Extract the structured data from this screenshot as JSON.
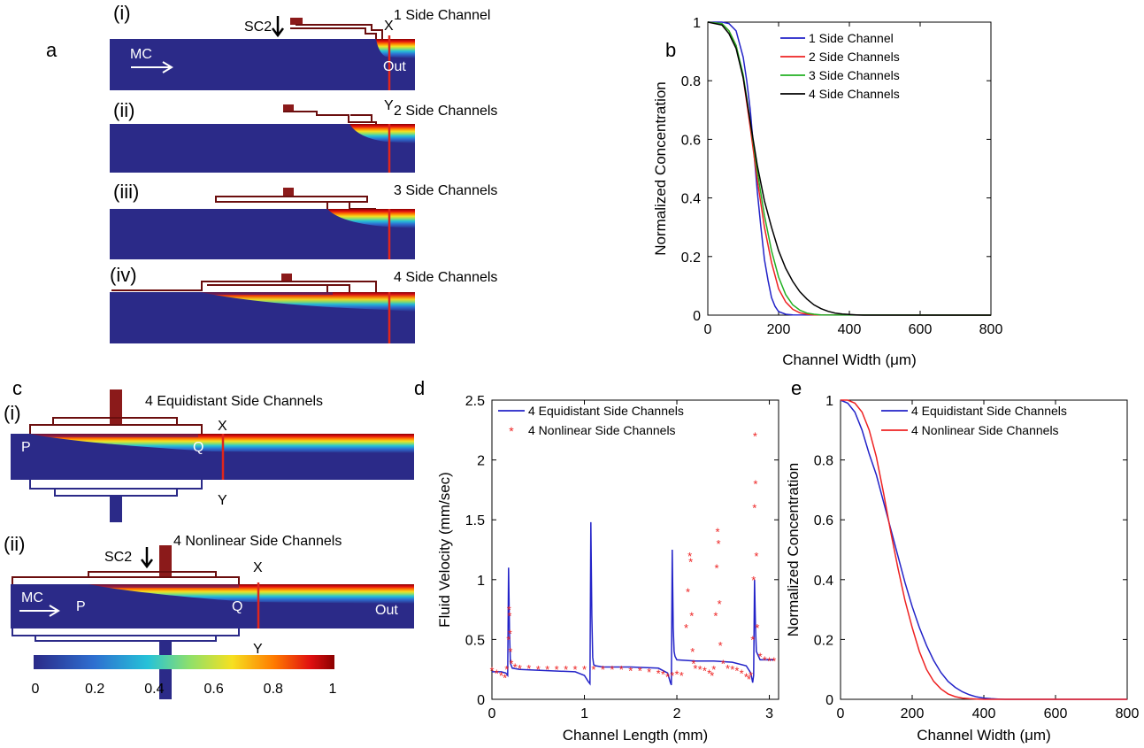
{
  "panel_a": {
    "letter": "a",
    "rows": [
      {
        "roman": "(i)",
        "label": "1 Side Channel"
      },
      {
        "roman": "(ii)",
        "label": "2 Side Channels"
      },
      {
        "roman": "(iii)",
        "label": "3 Side Channels"
      },
      {
        "roman": "(iv)",
        "label": "4 Side Channels"
      }
    ],
    "sc2": "SC2",
    "mc": "MC",
    "out": "Out",
    "x": "X",
    "y": "Y"
  },
  "panel_c": {
    "letter": "c",
    "rows": [
      {
        "roman": "(i)",
        "label": "4 Equidistant Side Channels"
      },
      {
        "roman": "(ii)",
        "label": "4 Nonlinear Side Channels"
      }
    ],
    "sc2": "SC2",
    "mc": "MC",
    "out": "Out",
    "x": "X",
    "y": "Y",
    "p": "P",
    "q": "Q",
    "colorbar_ticks": [
      "0",
      "0.2",
      "0.4",
      "0.6",
      "0.8",
      "1"
    ]
  },
  "colors": {
    "channel_bg": "#2b2a88",
    "wall": "#6b0e0e",
    "marker": "#8b1a1a",
    "line_red": "#e0261c",
    "series_blue": "#2323c8",
    "series_red": "#ee2222",
    "series_green": "#22b022",
    "series_black": "#000000"
  },
  "chart_data": [
    {
      "id": "b",
      "letter": "b",
      "type": "line",
      "xlabel": "Channel Width (μm)",
      "ylabel": "Normalized Concentration",
      "xlim": [
        0,
        800
      ],
      "ylim": [
        0,
        1
      ],
      "xticks": [
        "0",
        "200",
        "400",
        "600",
        "800"
      ],
      "yticks": [
        "0",
        "0.2",
        "0.4",
        "0.6",
        "0.8",
        "1"
      ],
      "legend_position": "top-right",
      "series": [
        {
          "name": "1 Side Channel",
          "color": "#2323c8",
          "x": [
            0,
            40,
            60,
            80,
            100,
            110,
            120,
            130,
            140,
            150,
            160,
            170,
            180,
            190,
            200,
            220,
            240,
            800
          ],
          "y": [
            1,
            1,
            0.995,
            0.97,
            0.88,
            0.8,
            0.7,
            0.56,
            0.42,
            0.3,
            0.19,
            0.12,
            0.06,
            0.03,
            0.012,
            0.003,
            0.001,
            0
          ]
        },
        {
          "name": "2 Side Channels",
          "color": "#ee2222",
          "x": [
            0,
            40,
            60,
            80,
            100,
            120,
            140,
            160,
            180,
            200,
            220,
            240,
            260,
            280,
            300,
            800
          ],
          "y": [
            1,
            0.995,
            0.97,
            0.92,
            0.81,
            0.64,
            0.46,
            0.3,
            0.18,
            0.09,
            0.045,
            0.02,
            0.008,
            0.003,
            0.001,
            0
          ]
        },
        {
          "name": "3 Side Channels",
          "color": "#22b022",
          "x": [
            0,
            40,
            60,
            80,
            100,
            120,
            140,
            160,
            180,
            200,
            220,
            240,
            260,
            280,
            300,
            320,
            800
          ],
          "y": [
            1,
            0.995,
            0.97,
            0.92,
            0.82,
            0.66,
            0.49,
            0.34,
            0.22,
            0.13,
            0.07,
            0.035,
            0.017,
            0.007,
            0.003,
            0.001,
            0
          ]
        },
        {
          "name": "4 Side Channels",
          "color": "#000000",
          "x": [
            0,
            40,
            60,
            80,
            100,
            120,
            140,
            160,
            180,
            200,
            220,
            240,
            260,
            280,
            300,
            320,
            340,
            360,
            380,
            400,
            420,
            440,
            800
          ],
          "y": [
            1,
            0.99,
            0.96,
            0.91,
            0.81,
            0.66,
            0.51,
            0.39,
            0.3,
            0.22,
            0.16,
            0.115,
            0.08,
            0.055,
            0.035,
            0.022,
            0.013,
            0.007,
            0.004,
            0.002,
            0.001,
            0,
            0
          ]
        }
      ]
    },
    {
      "id": "d",
      "letter": "d",
      "type": "line",
      "xlabel": "Channel Length (mm)",
      "ylabel": "Fluid Velocity (mm/sec)",
      "xlim": [
        0,
        3.1
      ],
      "ylim": [
        0,
        2.5
      ],
      "xticks": [
        "0",
        "1",
        "2",
        "3"
      ],
      "yticks": [
        "0",
        "0.5",
        "1",
        "1.5",
        "2",
        "2.5"
      ],
      "legend_position": "top-left",
      "series": [
        {
          "name": "4 Equidistant Side Channels",
          "color": "#2323c8",
          "style": "line",
          "x": [
            0,
            0.1,
            0.15,
            0.17,
            0.18,
            0.19,
            0.2,
            0.22,
            0.3,
            0.6,
            0.9,
            1.0,
            1.04,
            1.06,
            1.07,
            1.08,
            1.09,
            1.1,
            1.12,
            1.2,
            1.5,
            1.8,
            1.9,
            1.93,
            1.94,
            1.95,
            1.96,
            1.97,
            1.98,
            2.0,
            2.2,
            2.4,
            2.6,
            2.75,
            2.8,
            2.82,
            2.83,
            2.84,
            2.85,
            2.86,
            2.9,
            3.0,
            3.05
          ],
          "y": [
            0.23,
            0.23,
            0.22,
            0.2,
            1.1,
            0.55,
            0.3,
            0.26,
            0.25,
            0.24,
            0.23,
            0.2,
            0.15,
            0.13,
            1.48,
            0.7,
            0.35,
            0.29,
            0.28,
            0.27,
            0.27,
            0.26,
            0.22,
            0.14,
            0.12,
            1.25,
            0.6,
            0.4,
            0.36,
            0.33,
            0.32,
            0.32,
            0.31,
            0.28,
            0.22,
            0.14,
            0.2,
            1.0,
            0.6,
            0.4,
            0.33,
            0.33,
            0.33
          ]
        },
        {
          "name": "4 Nonlinear Side Channels",
          "color": "#ee2222",
          "style": "marker",
          "x": [
            0.0,
            0.05,
            0.1,
            0.14,
            0.16,
            0.18,
            0.185,
            0.19,
            0.195,
            0.2,
            0.21,
            0.25,
            0.3,
            0.4,
            0.5,
            0.6,
            0.7,
            0.8,
            0.9,
            1.0,
            1.1,
            1.2,
            1.3,
            1.4,
            1.5,
            1.6,
            1.7,
            1.8,
            1.85,
            1.9,
            1.95,
            2.0,
            2.05,
            2.1,
            2.12,
            2.14,
            2.15,
            2.16,
            2.17,
            2.18,
            2.2,
            2.25,
            2.3,
            2.35,
            2.38,
            2.4,
            2.42,
            2.43,
            2.44,
            2.45,
            2.46,
            2.47,
            2.5,
            2.55,
            2.6,
            2.65,
            2.7,
            2.75,
            2.78,
            2.8,
            2.82,
            2.83,
            2.84,
            2.845,
            2.85,
            2.86,
            2.87,
            2.9,
            2.95,
            3.0,
            3.05
          ],
          "y": [
            0.24,
            0.22,
            0.2,
            0.18,
            0.25,
            0.5,
            0.75,
            0.7,
            0.55,
            0.4,
            0.3,
            0.27,
            0.26,
            0.26,
            0.25,
            0.25,
            0.25,
            0.25,
            0.25,
            0.25,
            0.25,
            0.25,
            0.25,
            0.25,
            0.24,
            0.24,
            0.23,
            0.22,
            0.21,
            0.19,
            0.2,
            0.21,
            0.2,
            0.6,
            0.9,
            1.2,
            1.15,
            0.7,
            0.4,
            0.3,
            0.26,
            0.25,
            0.24,
            0.22,
            0.2,
            0.25,
            0.7,
            1.1,
            1.4,
            1.3,
            0.8,
            0.45,
            0.3,
            0.26,
            0.25,
            0.24,
            0.22,
            0.19,
            0.17,
            0.2,
            0.5,
            1.0,
            1.6,
            2.2,
            1.8,
            1.2,
            0.6,
            0.36,
            0.33,
            0.32,
            0.32
          ]
        }
      ]
    },
    {
      "id": "e",
      "letter": "e",
      "type": "line",
      "xlabel": "Channel Width (μm)",
      "ylabel": "Normalized Concentration",
      "xlim": [
        0,
        800
      ],
      "ylim": [
        0,
        1
      ],
      "xticks": [
        "0",
        "200",
        "400",
        "600",
        "800"
      ],
      "yticks": [
        "0",
        "0.2",
        "0.4",
        "0.6",
        "0.8",
        "1"
      ],
      "legend_position": "top-right",
      "series": [
        {
          "name": "4 Equidistant Side Channels",
          "color": "#2323c8",
          "x": [
            0,
            20,
            40,
            60,
            80,
            100,
            120,
            140,
            160,
            180,
            200,
            220,
            240,
            260,
            280,
            300,
            320,
            340,
            360,
            380,
            400,
            420,
            440,
            460,
            800
          ],
          "y": [
            1,
            0.99,
            0.96,
            0.9,
            0.82,
            0.75,
            0.66,
            0.57,
            0.48,
            0.39,
            0.31,
            0.24,
            0.18,
            0.13,
            0.09,
            0.06,
            0.04,
            0.025,
            0.015,
            0.008,
            0.004,
            0.002,
            0.001,
            0,
            0
          ]
        },
        {
          "name": "4 Nonlinear Side Channels",
          "color": "#ee2222",
          "x": [
            0,
            20,
            40,
            60,
            80,
            100,
            120,
            140,
            160,
            180,
            200,
            220,
            240,
            260,
            280,
            300,
            320,
            340,
            360,
            380,
            400,
            800
          ],
          "y": [
            1,
            1,
            0.99,
            0.96,
            0.9,
            0.81,
            0.69,
            0.56,
            0.44,
            0.33,
            0.24,
            0.16,
            0.1,
            0.06,
            0.035,
            0.018,
            0.009,
            0.004,
            0.002,
            0.001,
            0,
            0
          ]
        }
      ]
    }
  ]
}
